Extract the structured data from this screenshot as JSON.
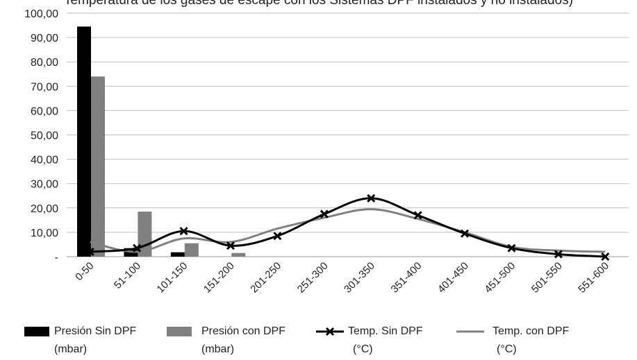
{
  "title": "Temperatura de los gases de escape con los Sistemas DPF instalados y no instalados)",
  "chart_data": {
    "type": "bar",
    "categories": [
      "0-50",
      "51-100",
      "101-150",
      "151-200",
      "201-250",
      "251-300",
      "301-350",
      "351-400",
      "401-450",
      "451-500",
      "501-550",
      "551-600"
    ],
    "ylim": [
      0,
      100
    ],
    "yticks": [
      "-",
      "10,00",
      "20,00",
      "30,00",
      "40,00",
      "50,00",
      "60,00",
      "70,00",
      "80,00",
      "90,00",
      "100,00"
    ],
    "grid": true,
    "legend_position": "bottom",
    "series": [
      {
        "name": "Presión Sin DPF (mbar)",
        "kind": "bar",
        "color": "#000000",
        "values": [
          94.5,
          3.5,
          1.8,
          0,
          0,
          0,
          0,
          0,
          0,
          0,
          0,
          0
        ]
      },
      {
        "name": "Presión con DPF (mbar)",
        "kind": "bar",
        "color": "#808080",
        "values": [
          74.0,
          18.5,
          5.5,
          1.5,
          0,
          0,
          0,
          0,
          0,
          0,
          0,
          0
        ]
      },
      {
        "name": "Temp. Sin DPF (°C)",
        "kind": "line",
        "marker": "x",
        "color": "#000000",
        "values": [
          2.0,
          3.5,
          10.5,
          4.5,
          8.5,
          17.5,
          24.0,
          17.0,
          9.5,
          3.5,
          1.0,
          0.0
        ]
      },
      {
        "name": "Temp. con DPF (°C)",
        "kind": "line",
        "color": "#808080",
        "values": [
          6.0,
          2.0,
          7.5,
          6.0,
          11.5,
          16.0,
          19.5,
          15.5,
          10.0,
          4.0,
          2.5,
          2.0
        ]
      }
    ]
  },
  "legend": [
    {
      "line1": "Presión Sin DPF",
      "line2": "(mbar)"
    },
    {
      "line1": "Presión con DPF",
      "line2": "(mbar)"
    },
    {
      "line1": "Temp. Sin DPF",
      "line2": "(°C)"
    },
    {
      "line1": "Temp. con DPF",
      "line2": "(°C)"
    }
  ]
}
